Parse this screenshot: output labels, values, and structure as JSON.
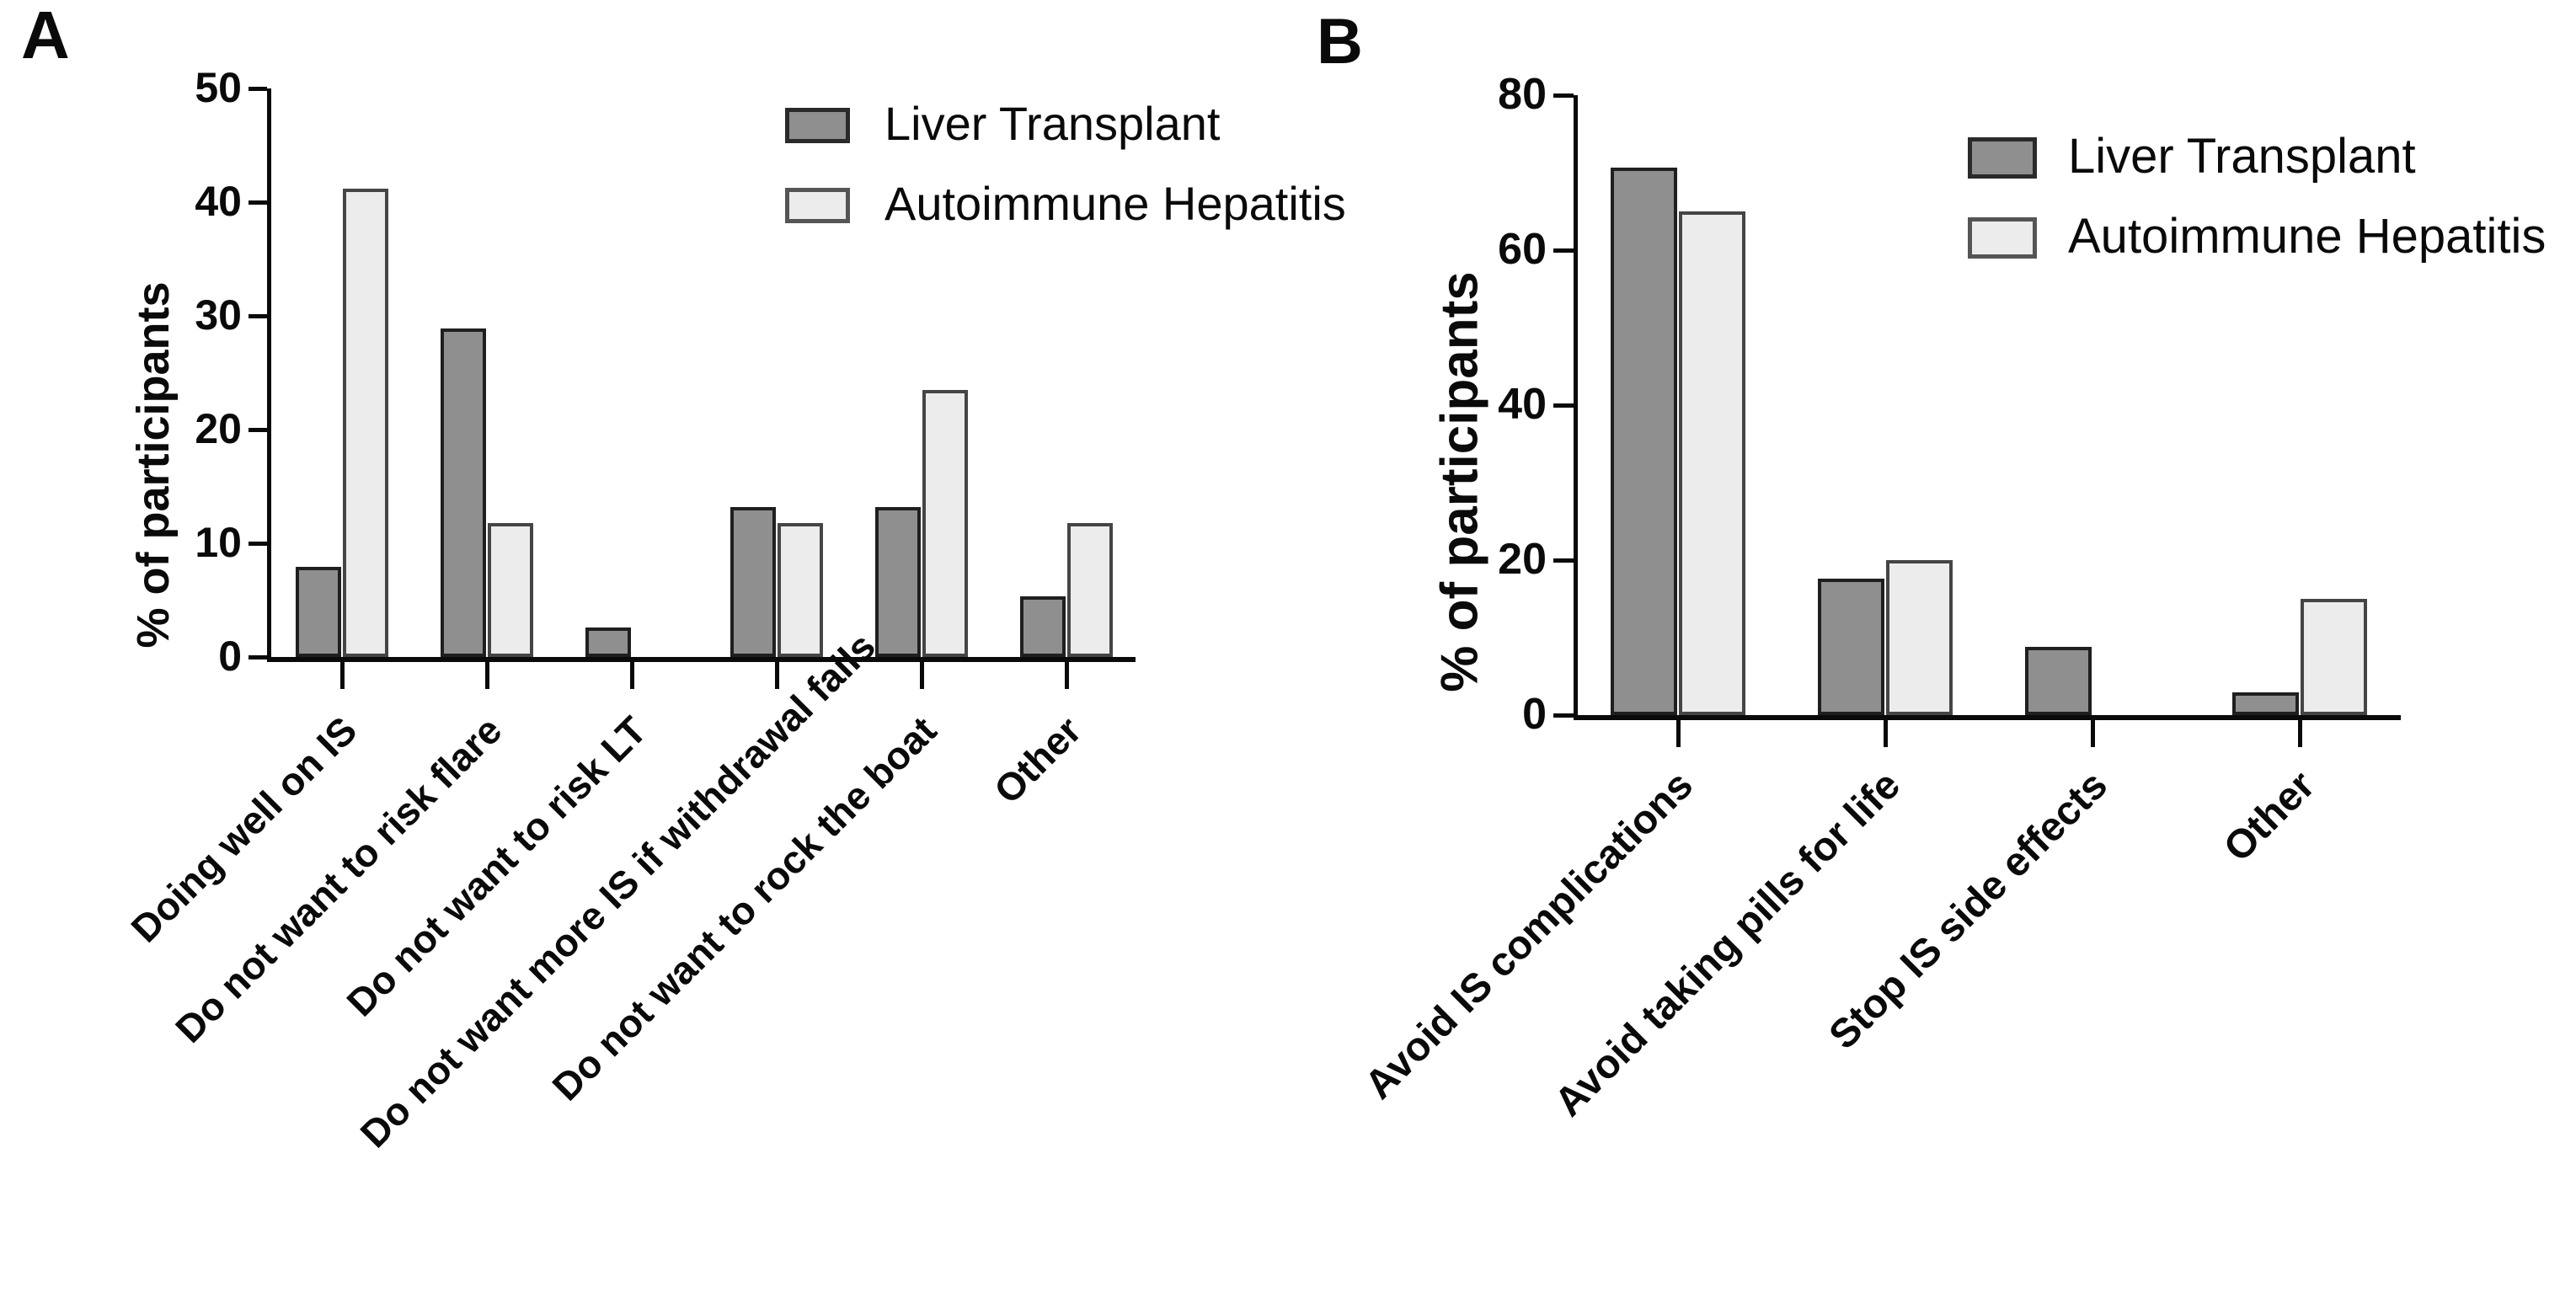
{
  "figure": {
    "background_color": "#ffffff",
    "colors": {
      "liver_transplant_fill": "#8f8f8f",
      "liver_transplant_border": "#1f1f1f",
      "autoimmune_hepatitis_fill": "#ececec",
      "autoimmune_hepatitis_border": "#454545",
      "axis_color": "#0a0a0a"
    },
    "panels": [
      {
        "letter": "A",
        "y_axis_label": "% of participants"
      },
      {
        "letter": "B",
        "y_axis_label": "% of participants"
      }
    ],
    "legend": {
      "entries": [
        {
          "label": "Liver Transplant",
          "swatch": "dark"
        },
        {
          "label": "Autoimmune Hepatitis",
          "swatch": "light"
        }
      ],
      "position": "top-right"
    }
  },
  "chart_data": [
    {
      "type": "bar",
      "panel": "A",
      "title": "",
      "categories": [
        "Doing well on IS",
        "Do not want to risk flare",
        "Do not want to risk LT",
        "Do not want more IS if withdrawal fails",
        "Do not want to rock the boat",
        "Other"
      ],
      "series": [
        {
          "name": "Liver Transplant",
          "values": [
            7.9,
            28.9,
            2.6,
            13.2,
            13.2,
            5.3
          ]
        },
        {
          "name": "Autoimmune Hepatitis",
          "values": [
            41.2,
            11.8,
            0,
            11.8,
            23.5,
            11.8
          ]
        }
      ],
      "xlabel": "",
      "ylabel": "% of participants",
      "ylim": [
        0,
        50
      ],
      "yticks": [
        0,
        10,
        20,
        30,
        40,
        50
      ],
      "grid": false,
      "legend_position": "top-right",
      "x_tick_label_rotation_deg": 45
    },
    {
      "type": "bar",
      "panel": "B",
      "title": "",
      "categories": [
        "Avoid IS complications",
        "Avoid taking pills for life",
        "Stop IS side effects",
        "Other"
      ],
      "series": [
        {
          "name": "Liver Transplant",
          "values": [
            70.6,
            17.6,
            8.8,
            2.9
          ]
        },
        {
          "name": "Autoimmune Hepatitis",
          "values": [
            65,
            20,
            0,
            15
          ]
        }
      ],
      "xlabel": "",
      "ylabel": "% of participants",
      "ylim": [
        0,
        80
      ],
      "yticks": [
        0,
        20,
        40,
        60,
        80
      ],
      "grid": false,
      "legend_position": "top-right",
      "x_tick_label_rotation_deg": 45
    }
  ]
}
